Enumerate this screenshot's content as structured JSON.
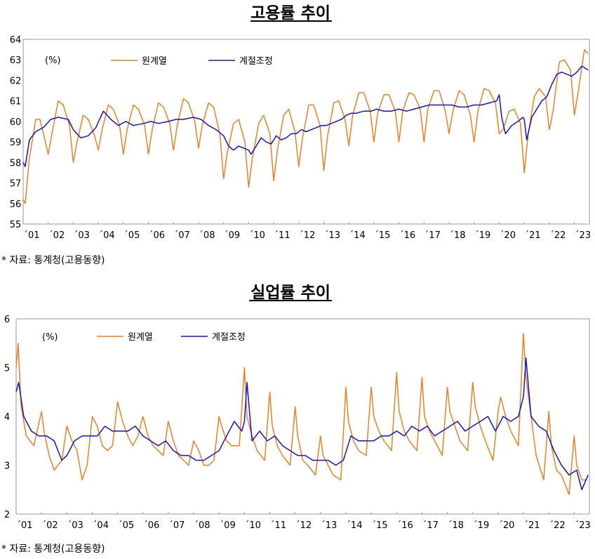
{
  "colors": {
    "original": "#F07F1E",
    "adjusted": "#1414C8",
    "axis": "#000000"
  },
  "chart_data": [
    {
      "type": "line",
      "title": "고용률 추이",
      "unit_label": "(%)",
      "legend": [
        "원계열",
        "계절조정"
      ],
      "source": "*  자료:  통계청(고용동향)",
      "ylim": [
        55,
        64
      ],
      "yticks": [
        "55",
        "56",
        "57",
        "58",
        "59",
        "60",
        "61",
        "62",
        "63",
        "64"
      ],
      "xticks": [
        "´01",
        "´02",
        "´03",
        "´04",
        "´05",
        "´06",
        "´07",
        "´08",
        "´09",
        "´10",
        "´11",
        "´12",
        "´13",
        "´14",
        "´15",
        "´16",
        "´17",
        "´18",
        "´19",
        "´20",
        "´21",
        "´22",
        "´23"
      ],
      "x_start": 2001.0,
      "x_end": 2023.6,
      "series": [
        {
          "name": "원계열",
          "x": [
            2001.0,
            2001.08,
            2001.25,
            2001.5,
            2001.67,
            2001.83,
            2002.0,
            2002.15,
            2002.4,
            2002.6,
            2002.85,
            2003.0,
            2003.15,
            2003.4,
            2003.6,
            2003.85,
            2004.0,
            2004.15,
            2004.4,
            2004.6,
            2004.85,
            2005.0,
            2005.15,
            2005.4,
            2005.6,
            2005.85,
            2006.0,
            2006.15,
            2006.4,
            2006.6,
            2006.85,
            2007.0,
            2007.15,
            2007.4,
            2007.6,
            2007.85,
            2008.0,
            2008.15,
            2008.4,
            2008.6,
            2008.85,
            2009.0,
            2009.15,
            2009.4,
            2009.6,
            2009.85,
            2010.0,
            2010.15,
            2010.4,
            2010.6,
            2010.85,
            2011.0,
            2011.15,
            2011.4,
            2011.6,
            2011.85,
            2012.0,
            2012.15,
            2012.4,
            2012.6,
            2012.85,
            2013.0,
            2013.15,
            2013.4,
            2013.6,
            2013.85,
            2014.0,
            2014.15,
            2014.4,
            2014.6,
            2014.85,
            2015.0,
            2015.15,
            2015.4,
            2015.6,
            2015.85,
            2016.0,
            2016.15,
            2016.4,
            2016.6,
            2016.85,
            2017.0,
            2017.15,
            2017.4,
            2017.6,
            2017.85,
            2018.0,
            2018.15,
            2018.4,
            2018.6,
            2018.85,
            2019.0,
            2019.15,
            2019.4,
            2019.6,
            2019.85,
            2020.0,
            2020.15,
            2020.4,
            2020.6,
            2020.85,
            2021.0,
            2021.15,
            2021.4,
            2021.6,
            2021.85,
            2022.0,
            2022.15,
            2022.4,
            2022.6,
            2022.85,
            2023.0,
            2023.15,
            2023.4,
            2023.55
          ],
          "values": [
            56.2,
            56.0,
            58.2,
            60.1,
            60.1,
            59.3,
            58.4,
            59.4,
            61.0,
            60.8,
            59.8,
            58.0,
            59.0,
            60.3,
            60.1,
            59.3,
            58.6,
            59.6,
            60.8,
            60.6,
            59.8,
            58.4,
            59.6,
            60.8,
            60.6,
            59.8,
            58.4,
            59.6,
            60.9,
            60.7,
            59.9,
            58.6,
            59.8,
            61.1,
            60.9,
            60.0,
            58.7,
            59.8,
            60.9,
            60.7,
            59.4,
            57.2,
            58.5,
            59.9,
            60.1,
            59.0,
            56.8,
            58.2,
            59.9,
            60.3,
            59.4,
            57.1,
            58.6,
            60.3,
            60.6,
            59.5,
            57.8,
            59.2,
            60.8,
            60.8,
            59.8,
            57.6,
            59.3,
            60.9,
            61.0,
            60.1,
            58.8,
            60.3,
            61.4,
            61.4,
            60.5,
            59.0,
            60.4,
            61.3,
            61.3,
            60.5,
            59.0,
            60.5,
            61.4,
            61.3,
            60.6,
            59.0,
            60.6,
            61.5,
            61.5,
            60.5,
            59.4,
            60.5,
            61.5,
            61.3,
            60.3,
            59.0,
            60.5,
            61.6,
            61.5,
            60.9,
            59.4,
            59.6,
            60.5,
            60.6,
            59.9,
            57.5,
            59.3,
            61.2,
            61.6,
            61.2,
            59.6,
            60.5,
            62.9,
            63.0,
            62.5,
            60.3,
            61.4,
            63.5,
            63.3
          ]
        },
        {
          "name": "계절조정",
          "x": [
            2001.0,
            2001.08,
            2001.25,
            2001.5,
            2001.8,
            2002.1,
            2002.4,
            2002.8,
            2003.0,
            2003.3,
            2003.6,
            2003.9,
            2004.2,
            2004.5,
            2004.8,
            2005.1,
            2005.4,
            2005.8,
            2006.1,
            2006.4,
            2006.8,
            2007.1,
            2007.4,
            2007.8,
            2008.1,
            2008.4,
            2008.7,
            2009.0,
            2009.2,
            2009.4,
            2009.6,
            2009.8,
            2010.0,
            2010.1,
            2010.3,
            2010.5,
            2010.7,
            2010.9,
            2011.1,
            2011.3,
            2011.5,
            2011.7,
            2011.9,
            2012.1,
            2012.3,
            2012.5,
            2012.7,
            2012.9,
            2013.1,
            2013.3,
            2013.5,
            2013.7,
            2013.9,
            2014.1,
            2014.3,
            2014.6,
            2014.9,
            2015.1,
            2015.4,
            2015.7,
            2016.0,
            2016.3,
            2016.6,
            2016.9,
            2017.2,
            2017.5,
            2017.8,
            2018.1,
            2018.4,
            2018.7,
            2019.0,
            2019.3,
            2019.6,
            2019.9,
            2020.0,
            2020.1,
            2020.25,
            2020.5,
            2020.75,
            2020.95,
            2021.0,
            2021.1,
            2021.3,
            2021.5,
            2021.7,
            2021.9,
            2022.1,
            2022.3,
            2022.5,
            2022.7,
            2022.9,
            2023.1,
            2023.3,
            2023.55
          ],
          "values": [
            58.0,
            57.8,
            59.1,
            59.5,
            59.7,
            60.1,
            60.2,
            60.1,
            59.6,
            59.2,
            59.3,
            59.7,
            60.5,
            60.1,
            59.8,
            60.0,
            59.8,
            59.9,
            60.0,
            59.9,
            60.0,
            60.1,
            60.1,
            60.2,
            60.1,
            59.8,
            59.6,
            59.3,
            58.8,
            58.6,
            58.8,
            58.7,
            58.6,
            58.4,
            58.8,
            59.2,
            59.0,
            58.9,
            59.3,
            59.1,
            59.2,
            59.4,
            59.4,
            59.6,
            59.5,
            59.6,
            59.7,
            59.8,
            59.8,
            59.9,
            60.0,
            60.1,
            60.3,
            60.4,
            60.4,
            60.5,
            60.5,
            60.6,
            60.5,
            60.5,
            60.6,
            60.5,
            60.6,
            60.7,
            60.8,
            60.8,
            60.8,
            60.8,
            60.7,
            60.7,
            60.8,
            60.8,
            60.9,
            61.0,
            61.3,
            60.2,
            59.4,
            59.8,
            60.0,
            60.2,
            60.1,
            59.1,
            60.2,
            60.6,
            61.0,
            61.2,
            61.8,
            62.3,
            62.4,
            62.3,
            62.2,
            62.4,
            62.7,
            62.5
          ]
        }
      ]
    },
    {
      "type": "line",
      "title": "실업률 추이",
      "unit_label": "(%)",
      "legend": [
        "원계열",
        "계절조정"
      ],
      "source": "*  자료:  통계청(고용동향)",
      "ylim": [
        2,
        6
      ],
      "yticks": [
        "2",
        "3",
        "4",
        "5",
        "6"
      ],
      "xticks": [
        "´01",
        "´02",
        "´03",
        "´04",
        "´05",
        "´06",
        "´07",
        "´08",
        "´09",
        "´10",
        "´11",
        "´12",
        "´13",
        "´14",
        "´15",
        "´16",
        "´17",
        "´18",
        "´19",
        "´20",
        "´21",
        "´22",
        "´23"
      ],
      "x_start": 2001.0,
      "x_end": 2023.6,
      "series": [
        {
          "name": "원계열",
          "x": [
            2001.0,
            2001.08,
            2001.2,
            2001.4,
            2001.7,
            2002.0,
            2002.1,
            2002.3,
            2002.5,
            2002.8,
            2003.0,
            2003.2,
            2003.4,
            2003.6,
            2003.8,
            2004.0,
            2004.2,
            2004.4,
            2004.6,
            2004.8,
            2005.0,
            2005.2,
            2005.4,
            2005.6,
            2005.8,
            2006.0,
            2006.2,
            2006.4,
            2006.6,
            2006.8,
            2007.0,
            2007.2,
            2007.4,
            2007.6,
            2007.8,
            2008.0,
            2008.2,
            2008.4,
            2008.6,
            2008.8,
            2009.0,
            2009.1,
            2009.3,
            2009.5,
            2009.8,
            2010.0,
            2010.1,
            2010.3,
            2010.5,
            2010.8,
            2011.0,
            2011.1,
            2011.3,
            2011.5,
            2011.8,
            2012.0,
            2012.1,
            2012.3,
            2012.5,
            2012.8,
            2013.0,
            2013.1,
            2013.3,
            2013.5,
            2013.8,
            2014.0,
            2014.1,
            2014.3,
            2014.5,
            2014.8,
            2015.0,
            2015.1,
            2015.3,
            2015.5,
            2015.8,
            2016.0,
            2016.1,
            2016.3,
            2016.5,
            2016.8,
            2017.0,
            2017.1,
            2017.3,
            2017.5,
            2017.8,
            2018.0,
            2018.1,
            2018.3,
            2018.5,
            2018.8,
            2019.0,
            2019.1,
            2019.3,
            2019.5,
            2019.8,
            2020.0,
            2020.1,
            2020.3,
            2020.5,
            2020.8,
            2021.0,
            2021.1,
            2021.3,
            2021.5,
            2021.8,
            2022.0,
            2022.1,
            2022.3,
            2022.5,
            2022.8,
            2023.0,
            2023.1,
            2023.3,
            2023.5
          ],
          "values": [
            5.0,
            5.5,
            4.2,
            3.6,
            3.4,
            4.1,
            3.7,
            3.2,
            2.9,
            3.1,
            3.8,
            3.5,
            3.3,
            2.7,
            3.0,
            4.0,
            3.8,
            3.4,
            3.3,
            3.4,
            4.3,
            3.9,
            3.6,
            3.4,
            3.6,
            4.0,
            3.6,
            3.4,
            3.3,
            3.2,
            3.9,
            3.5,
            3.2,
            3.1,
            3.0,
            3.5,
            3.3,
            3.0,
            3.0,
            3.1,
            4.0,
            3.8,
            3.5,
            3.4,
            3.4,
            5.0,
            4.0,
            3.6,
            3.3,
            3.1,
            4.5,
            3.8,
            3.4,
            3.2,
            3.0,
            4.2,
            3.6,
            3.1,
            3.0,
            2.8,
            3.6,
            3.2,
            3.0,
            2.8,
            2.7,
            4.6,
            3.9,
            3.5,
            3.3,
            3.2,
            4.6,
            4.0,
            3.7,
            3.5,
            3.3,
            4.9,
            4.1,
            3.7,
            3.5,
            3.3,
            4.8,
            4.0,
            3.7,
            3.5,
            3.2,
            4.6,
            4.1,
            3.8,
            3.5,
            3.3,
            4.7,
            4.2,
            3.8,
            3.5,
            3.1,
            4.1,
            4.4,
            4.0,
            3.7,
            3.4,
            5.7,
            4.8,
            4.0,
            3.2,
            2.7,
            4.1,
            3.4,
            2.9,
            2.8,
            2.4,
            3.6,
            3.0,
            2.7,
            2.7
          ]
        },
        {
          "name": "계절조정",
          "x": [
            2001.0,
            2001.1,
            2001.3,
            2001.6,
            2001.9,
            2002.2,
            2002.5,
            2002.8,
            2003.0,
            2003.3,
            2003.6,
            2003.9,
            2004.2,
            2004.5,
            2004.8,
            2005.1,
            2005.4,
            2005.7,
            2006.0,
            2006.3,
            2006.6,
            2006.9,
            2007.2,
            2007.5,
            2007.8,
            2008.1,
            2008.4,
            2008.7,
            2009.0,
            2009.3,
            2009.6,
            2009.9,
            2010.0,
            2010.1,
            2010.3,
            2010.6,
            2010.9,
            2011.2,
            2011.5,
            2011.8,
            2012.1,
            2012.4,
            2012.7,
            2013.0,
            2013.3,
            2013.6,
            2013.9,
            2014.2,
            2014.5,
            2014.8,
            2015.1,
            2015.4,
            2015.7,
            2016.0,
            2016.3,
            2016.6,
            2016.9,
            2017.2,
            2017.5,
            2017.8,
            2018.1,
            2018.4,
            2018.7,
            2019.0,
            2019.3,
            2019.6,
            2019.9,
            2020.2,
            2020.5,
            2020.8,
            2021.0,
            2021.1,
            2021.3,
            2021.6,
            2021.9,
            2022.2,
            2022.5,
            2022.8,
            2023.1,
            2023.3,
            2023.55
          ],
          "values": [
            4.5,
            4.7,
            4.0,
            3.7,
            3.6,
            3.6,
            3.5,
            3.1,
            3.2,
            3.5,
            3.6,
            3.6,
            3.6,
            3.8,
            3.7,
            3.7,
            3.7,
            3.8,
            3.6,
            3.5,
            3.4,
            3.5,
            3.3,
            3.2,
            3.2,
            3.1,
            3.1,
            3.2,
            3.3,
            3.6,
            3.9,
            3.7,
            3.9,
            4.7,
            3.5,
            3.7,
            3.5,
            3.6,
            3.4,
            3.3,
            3.2,
            3.2,
            3.1,
            3.1,
            3.1,
            3.0,
            3.1,
            3.6,
            3.5,
            3.5,
            3.5,
            3.6,
            3.6,
            3.7,
            3.6,
            3.8,
            3.7,
            3.8,
            3.6,
            3.7,
            3.8,
            3.9,
            3.7,
            3.8,
            3.9,
            4.0,
            3.7,
            4.0,
            3.9,
            4.0,
            4.4,
            5.2,
            4.0,
            3.8,
            3.7,
            3.3,
            3.0,
            2.8,
            2.9,
            2.5,
            2.8
          ]
        }
      ]
    }
  ]
}
